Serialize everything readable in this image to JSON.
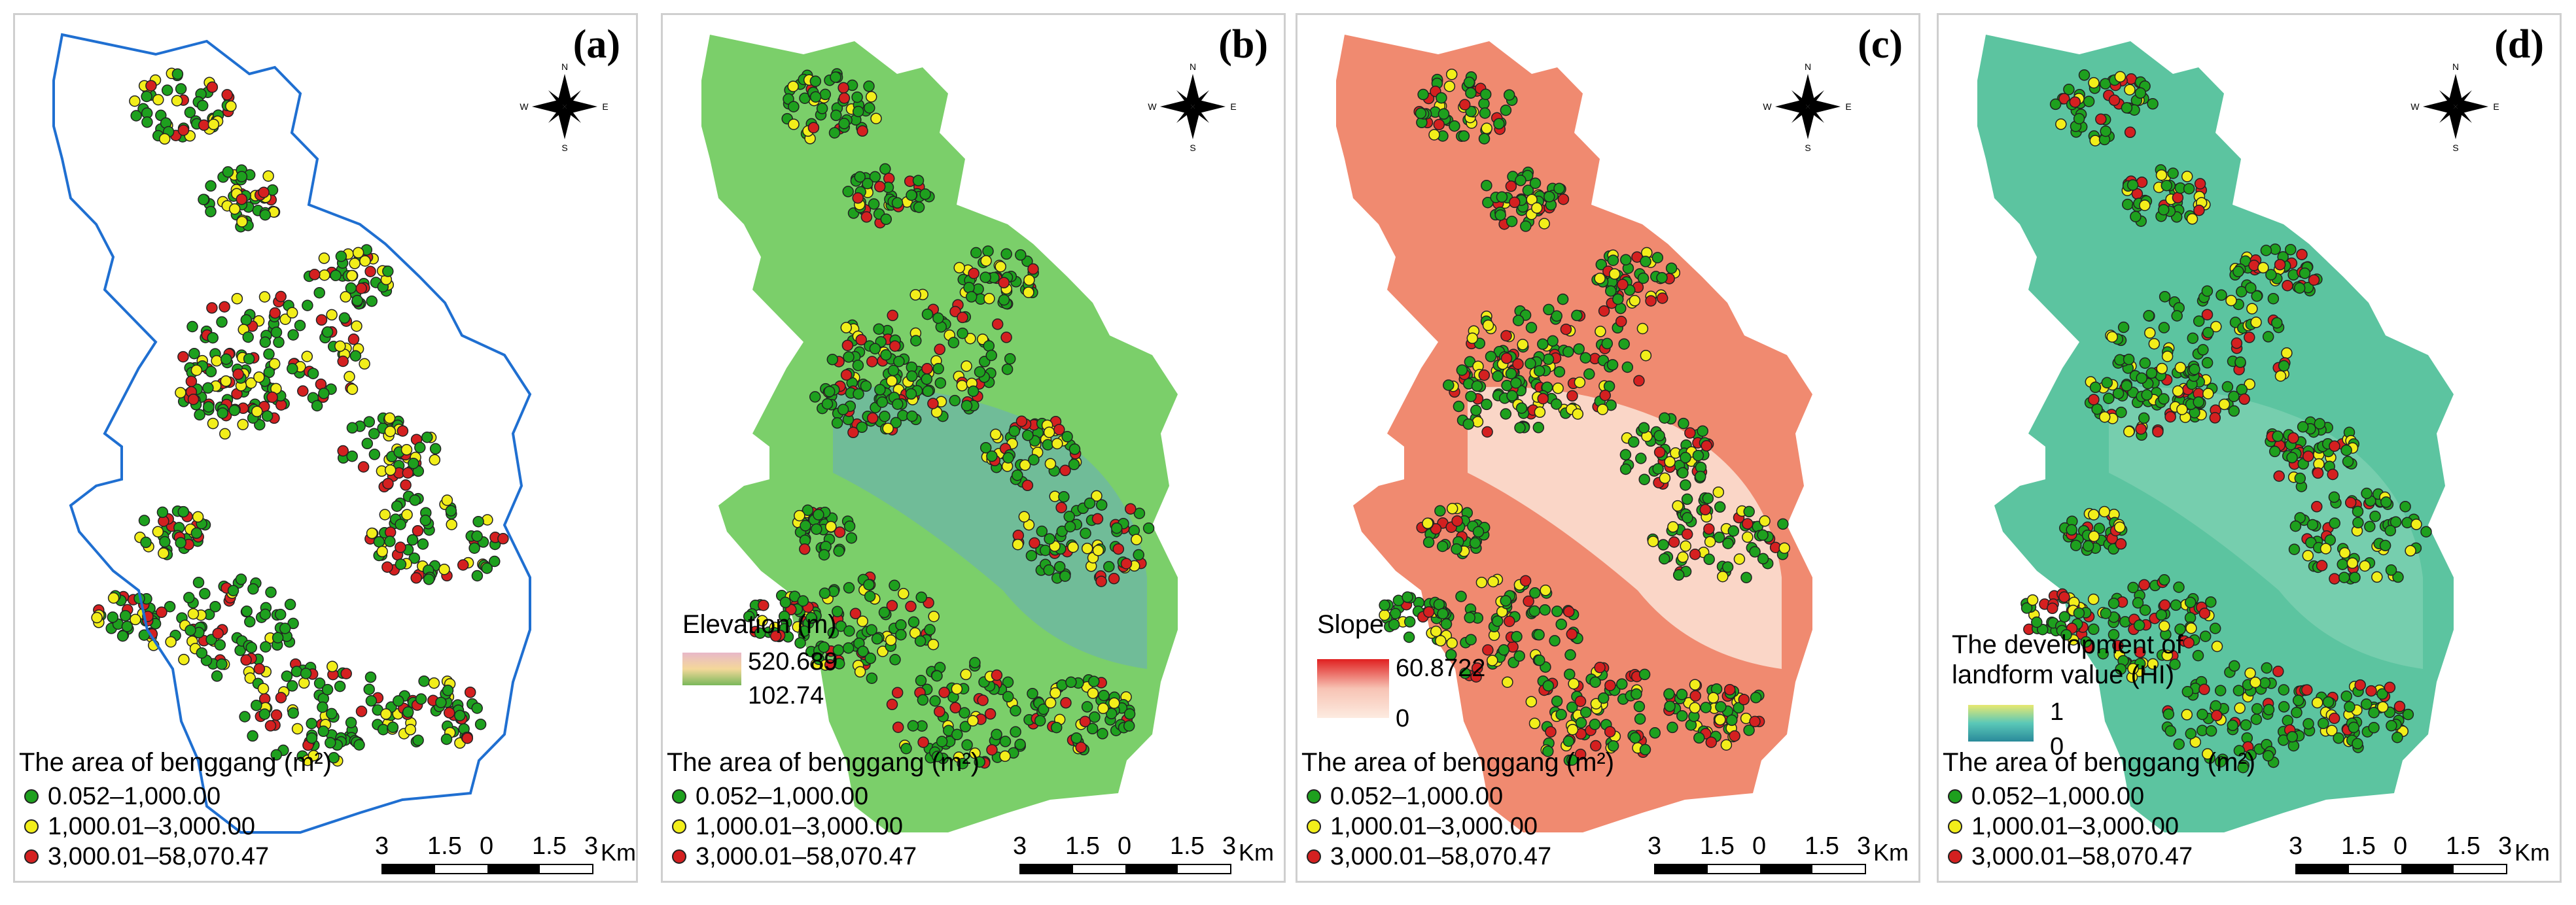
{
  "panels": [
    {
      "id": "a",
      "label": "(a)",
      "type": "boundary"
    },
    {
      "id": "b",
      "label": "(b)",
      "type": "elevation",
      "ramp_title": "Elevation (m)",
      "ramp_max": "520.689",
      "ramp_min": "102.74",
      "ramp_colors": [
        "#e8b8c8",
        "#f4d89a",
        "#7ab85a"
      ]
    },
    {
      "id": "c",
      "label": "(c)",
      "type": "slope",
      "ramp_title": "Slope",
      "ramp_max": "60.8722",
      "ramp_min": "0",
      "ramp_colors": [
        "#e02020",
        "#f7c3b4",
        "#fdebe0"
      ]
    },
    {
      "id": "d",
      "label": "(d)",
      "type": "hi",
      "ramp_title_line1": "The development of",
      "ramp_title_line2": "landform value (HI)",
      "ramp_max": "1",
      "ramp_min": "0",
      "ramp_colors": [
        "#e8e870",
        "#5ac8b8",
        "#2a8a9a"
      ]
    }
  ],
  "legend": {
    "title": "The area of benggang (m²)",
    "classes": [
      {
        "label": "0.052–1,000.00",
        "color": "#1ea01e"
      },
      {
        "label": "1,000.01–3,000.00",
        "color": "#f2ee1a"
      },
      {
        "label": "3,000.01–58,070.47",
        "color": "#d42020"
      }
    ]
  },
  "scale_bar": {
    "ticks": [
      "3",
      "1.5",
      "0",
      "1.5",
      "3"
    ],
    "unit": "Km"
  },
  "north_arrow": {
    "n": "N",
    "s": "S",
    "e": "E",
    "w": "W"
  },
  "colors": {
    "boundary": "#1f6fd1",
    "elevation_base": "#7bcf6a",
    "slope_base": "#f08a70",
    "hi_base": "#5cc4a0"
  }
}
